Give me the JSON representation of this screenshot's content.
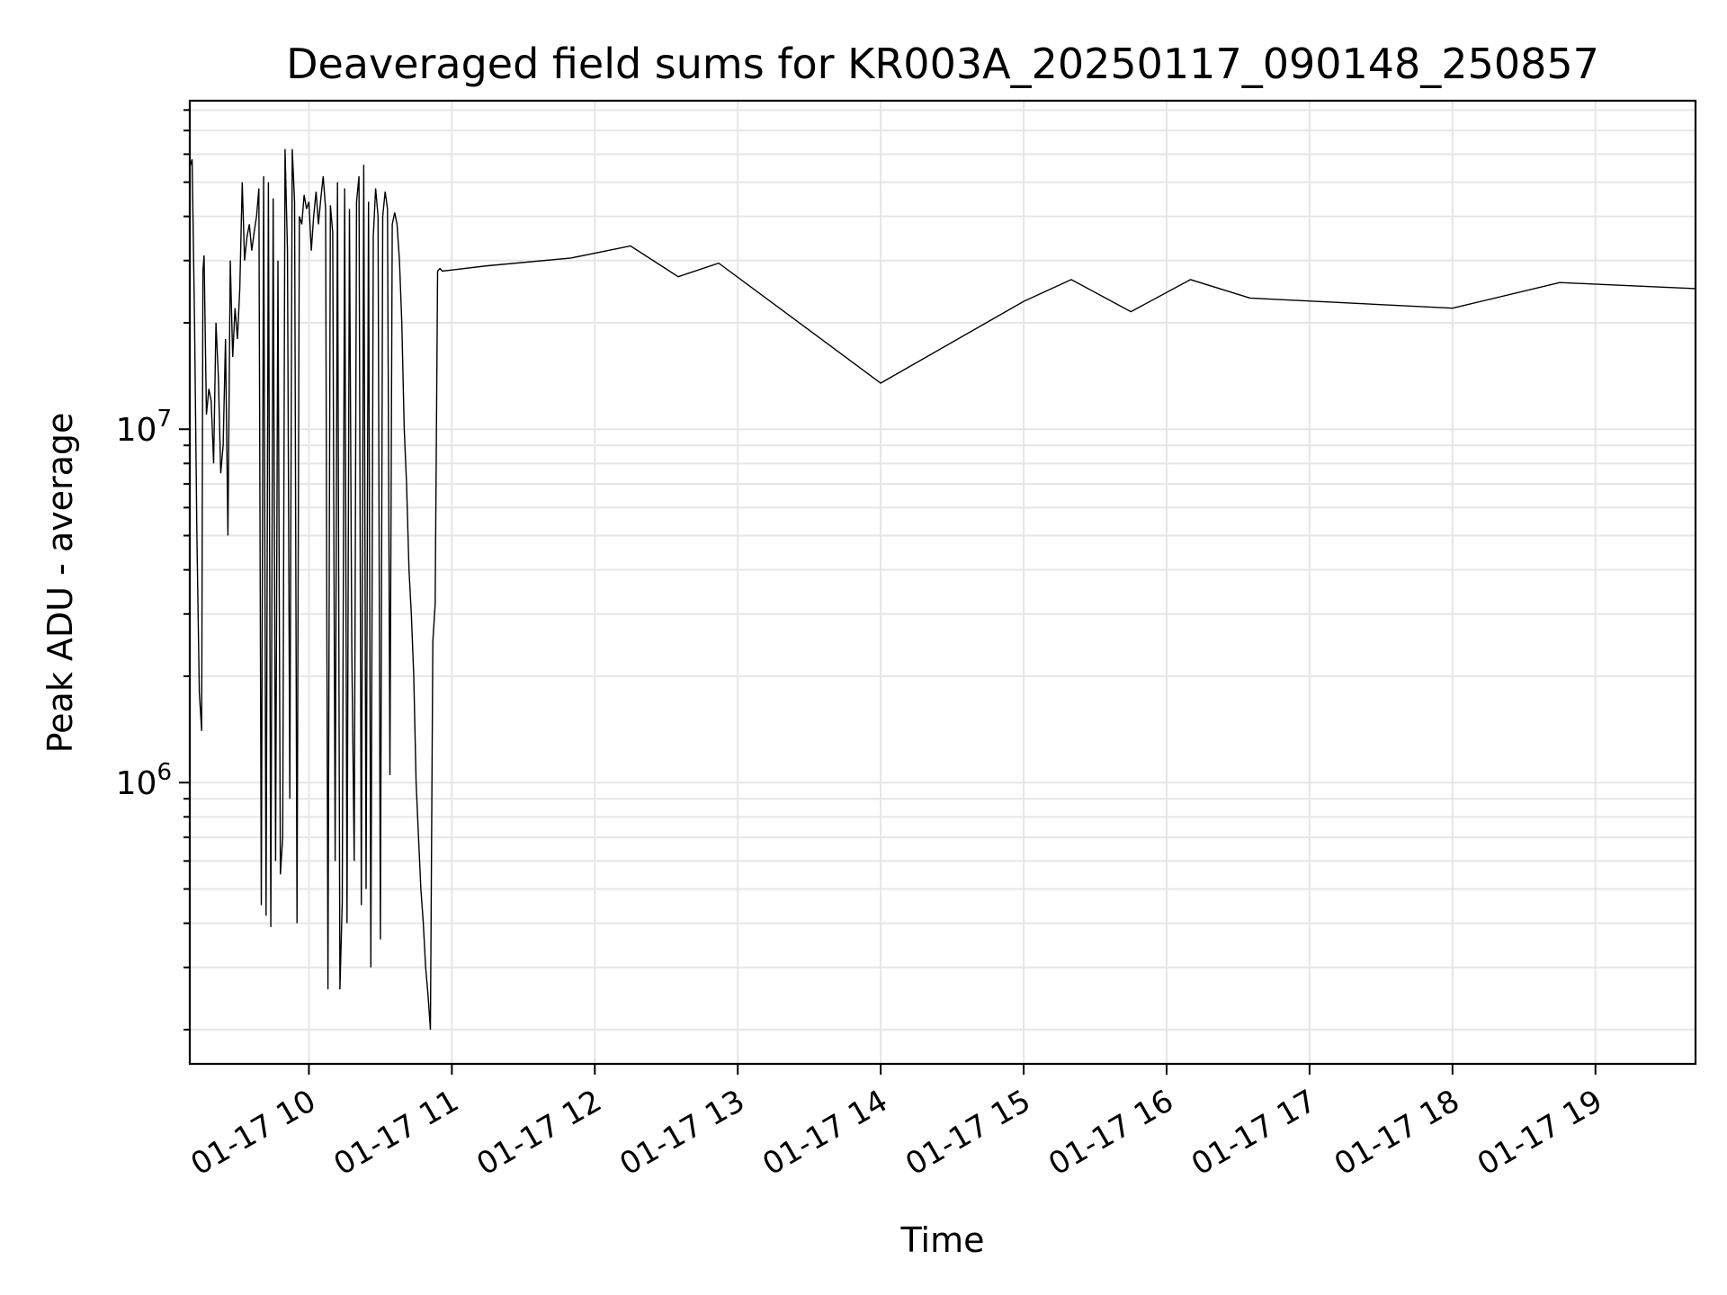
{
  "chart_data": {
    "type": "line",
    "title": "Deaveraged field sums for KR003A_20250117_090148_250857",
    "xlabel": "Time",
    "ylabel": "Peak ADU - average",
    "yscale": "log",
    "ylim": [
      160000,
      85000000
    ],
    "xlim": [
      "01-17 09:10",
      "01-17 19:42"
    ],
    "grid": true,
    "line_color": "#000000",
    "x_ticks": [
      {
        "time": "01-17 10:00",
        "label": "01-17 10"
      },
      {
        "time": "01-17 11:00",
        "label": "01-17 11"
      },
      {
        "time": "01-17 12:00",
        "label": "01-17 12"
      },
      {
        "time": "01-17 13:00",
        "label": "01-17 13"
      },
      {
        "time": "01-17 14:00",
        "label": "01-17 14"
      },
      {
        "time": "01-17 15:00",
        "label": "01-17 15"
      },
      {
        "time": "01-17 16:00",
        "label": "01-17 16"
      },
      {
        "time": "01-17 17:00",
        "label": "01-17 17"
      },
      {
        "time": "01-17 18:00",
        "label": "01-17 18"
      },
      {
        "time": "01-17 19:00",
        "label": "01-17 19"
      }
    ],
    "y_ticks": [
      {
        "value": 1000000,
        "base": "10",
        "exp": "6"
      },
      {
        "value": 10000000,
        "base": "10",
        "exp": "7"
      }
    ],
    "x": [
      "01-17 09:10",
      "01-17 09:11",
      "01-17 09:12",
      "01-17 09:13",
      "01-17 09:14",
      "01-17 09:15",
      "01-17 09:15:30",
      "01-17 09:16",
      "01-17 09:17",
      "01-17 09:18",
      "01-17 09:19",
      "01-17 09:20",
      "01-17 09:21",
      "01-17 09:22",
      "01-17 09:23",
      "01-17 09:24",
      "01-17 09:25",
      "01-17 09:26",
      "01-17 09:27",
      "01-17 09:28",
      "01-17 09:29",
      "01-17 09:30",
      "01-17 09:31",
      "01-17 09:32",
      "01-17 09:33",
      "01-17 09:34",
      "01-17 09:35",
      "01-17 09:36",
      "01-17 09:37",
      "01-17 09:38",
      "01-17 09:39",
      "01-17 09:40",
      "01-17 09:41",
      "01-17 09:42",
      "01-17 09:43",
      "01-17 09:44",
      "01-17 09:45",
      "01-17 09:46",
      "01-17 09:47",
      "01-17 09:48",
      "01-17 09:49",
      "01-17 09:50",
      "01-17 09:51",
      "01-17 09:52",
      "01-17 09:53",
      "01-17 09:54",
      "01-17 09:55",
      "01-17 09:56",
      "01-17 09:57",
      "01-17 09:58",
      "01-17 09:59",
      "01-17 10:00",
      "01-17 10:01",
      "01-17 10:02",
      "01-17 10:03",
      "01-17 10:04",
      "01-17 10:05",
      "01-17 10:06",
      "01-17 10:07",
      "01-17 10:08",
      "01-17 10:09",
      "01-17 10:10",
      "01-17 10:11",
      "01-17 10:12",
      "01-17 10:13",
      "01-17 10:14",
      "01-17 10:15",
      "01-17 10:16",
      "01-17 10:17",
      "01-17 10:18",
      "01-17 10:19",
      "01-17 10:20",
      "01-17 10:21",
      "01-17 10:22",
      "01-17 10:23",
      "01-17 10:24",
      "01-17 10:25",
      "01-17 10:26",
      "01-17 10:27",
      "01-17 10:28",
      "01-17 10:29",
      "01-17 10:30",
      "01-17 10:31",
      "01-17 10:32",
      "01-17 10:33",
      "01-17 10:34",
      "01-17 10:35",
      "01-17 10:36",
      "01-17 10:37",
      "01-17 10:38",
      "01-17 10:39",
      "01-17 10:40",
      "01-17 10:41",
      "01-17 10:42",
      "01-17 10:43",
      "01-17 10:44",
      "01-17 10:45",
      "01-17 10:46",
      "01-17 10:47",
      "01-17 10:48",
      "01-17 10:49",
      "01-17 10:50",
      "01-17 10:51",
      "01-17 10:52",
      "01-17 10:53",
      "01-17 10:54",
      "01-17 10:55",
      "01-17 10:56",
      "01-17 11:15",
      "01-17 11:50",
      "01-17 12:15",
      "01-17 12:35",
      "01-17 12:52",
      "01-17 14:00",
      "01-17 15:00",
      "01-17 15:20",
      "01-17 15:45",
      "01-17 16:10",
      "01-17 16:35",
      "01-17 18:00",
      "01-17 18:45",
      "01-17 19:42"
    ],
    "y": [
      55000000,
      58000000,
      20000000,
      5000000,
      1800000,
      1400000,
      28000000,
      31000000,
      11000000,
      13000000,
      12000000,
      8000000,
      20000000,
      14000000,
      7500000,
      9000000,
      18000000,
      5000000,
      30000000,
      16000000,
      22000000,
      18000000,
      25000000,
      50000000,
      30000000,
      35000000,
      38000000,
      32000000,
      36000000,
      40000000,
      48000000,
      450000,
      52000000,
      420000,
      50000000,
      390000,
      45000000,
      600000,
      30000000,
      550000,
      700000,
      62000000,
      32000000,
      900000,
      62000000,
      44000000,
      400000,
      40000000,
      38000000,
      46000000,
      42000000,
      44000000,
      32000000,
      40000000,
      47000000,
      38000000,
      45000000,
      52000000,
      42000000,
      260000,
      43000000,
      36000000,
      600000,
      50000000,
      260000,
      460000,
      48000000,
      400000,
      42000000,
      2400000,
      600000,
      44000000,
      52000000,
      450000,
      56000000,
      500000,
      44000000,
      300000,
      35000000,
      48000000,
      40000000,
      360000,
      40000000,
      47000000,
      42000000,
      1050000,
      38000000,
      41000000,
      38000000,
      30000000,
      20000000,
      10000000,
      7000000,
      4000000,
      3000000,
      2000000,
      1000000,
      700000,
      500000,
      400000,
      300000,
      250000,
      200000,
      2500000,
      3200000,
      28000000,
      28500000,
      28000000,
      29000000,
      30500000,
      33000000,
      27000000,
      29500000,
      13500000,
      23000000,
      26500000,
      21500000,
      26500000,
      23500000,
      22000000,
      26000000,
      25000000
    ]
  }
}
